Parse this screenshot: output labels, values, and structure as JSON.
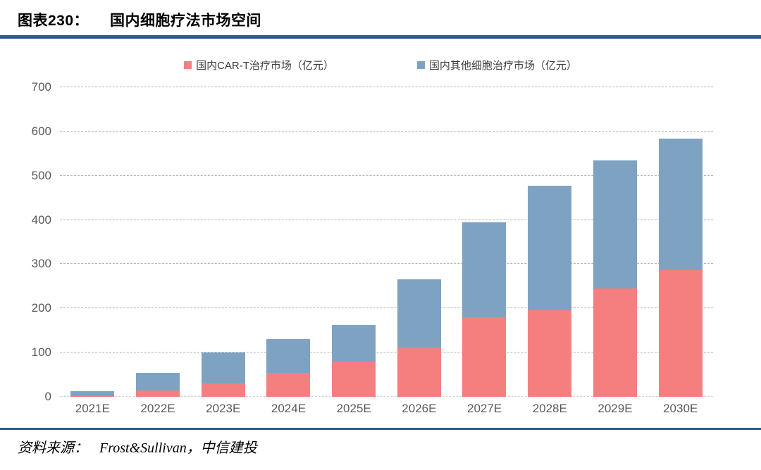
{
  "figure": {
    "label": "图表230：",
    "title": "国内细胞疗法市场空间"
  },
  "source": {
    "prefix": "资料来源：",
    "text": "Frost&Sullivan，中信建投"
  },
  "colors": {
    "cart_red": "#f57f7f",
    "other_blue": "#7ea3c2",
    "title_rule": "#2e5c8a",
    "source_rule": "#2e5c8a",
    "gridline": "#b5b5b5",
    "axis_text": "#595959"
  },
  "chart_data": {
    "type": "bar",
    "stacked": true,
    "title": "国内细胞疗法市场空间",
    "xlabel": "",
    "ylabel": "",
    "categories": [
      "2021E",
      "2022E",
      "2023E",
      "2024E",
      "2025E",
      "2026E",
      "2027E",
      "2028E",
      "2029E",
      "2030E"
    ],
    "series": [
      {
        "name": "国内CAR-T治疗市场（亿元）",
        "color": "#f57f7f",
        "values": [
          2,
          15,
          30,
          54,
          80,
          112,
          180,
          195,
          245,
          287
        ]
      },
      {
        "name": "国内其他细胞治疗市场（亿元）",
        "color": "#7ea3c2",
        "values": [
          11,
          39,
          71,
          76,
          82,
          153,
          215,
          282,
          290,
          297
        ]
      }
    ],
    "totals": [
      13,
      54,
      101,
      130,
      162,
      265,
      395,
      477,
      535,
      584
    ],
    "ylim": [
      0,
      700
    ],
    "ytick_step": 100,
    "grid": "dashed horizontal",
    "legend_position": "top"
  }
}
